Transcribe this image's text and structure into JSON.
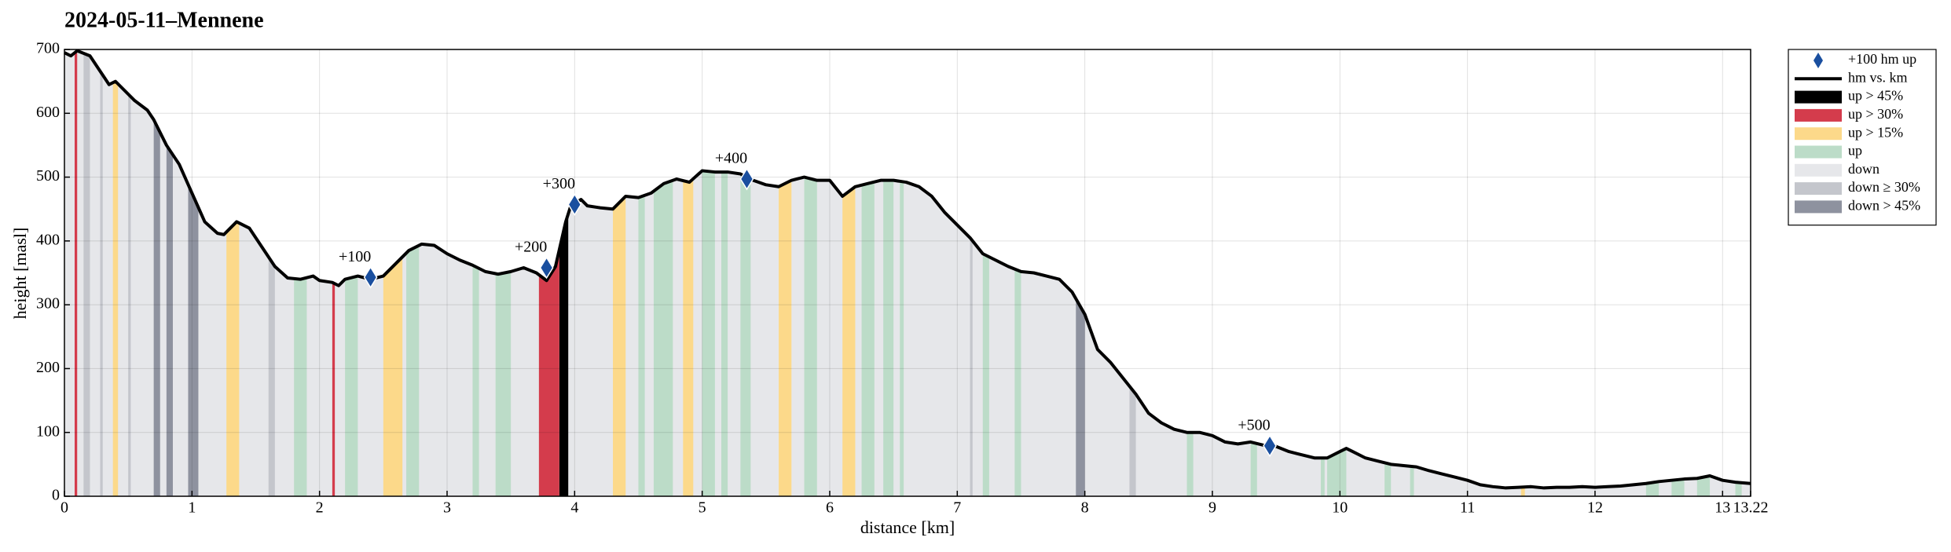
{
  "chart_data": {
    "type": "elevation-profile",
    "title": "2024-05-11–Mennene",
    "xlabel": "distance [km]",
    "ylabel": "height [masl]",
    "xlim": [
      0,
      13.22
    ],
    "ylim": [
      0,
      700
    ],
    "xticks": [
      0,
      1,
      2,
      3,
      4,
      5,
      6,
      7,
      8,
      9,
      10,
      11,
      12,
      13,
      13.22
    ],
    "yticks": [
      0,
      100,
      200,
      300,
      400,
      500,
      600,
      700
    ],
    "grid": true,
    "legend": "outside upper right",
    "series": [
      {
        "name": "+100 hm up",
        "kind": "marker",
        "color": "#1a4f9f",
        "x": [
          2.4,
          3.78,
          4.0,
          5.35,
          9.45
        ],
        "values": [
          343,
          358,
          457,
          497,
          79
        ],
        "value_labels": [
          "+100",
          "+200",
          "+300",
          "+400",
          "+500"
        ]
      },
      {
        "name": "hm vs. km",
        "kind": "line",
        "color": "#000000",
        "x": [
          0,
          0.05,
          0.1,
          0.2,
          0.3,
          0.35,
          0.4,
          0.45,
          0.55,
          0.65,
          0.7,
          0.8,
          0.9,
          1.0,
          1.1,
          1.2,
          1.25,
          1.35,
          1.45,
          1.55,
          1.65,
          1.75,
          1.85,
          1.95,
          2.0,
          2.1,
          2.15,
          2.2,
          2.3,
          2.4,
          2.5,
          2.6,
          2.7,
          2.8,
          2.9,
          3.0,
          3.1,
          3.2,
          3.3,
          3.4,
          3.5,
          3.6,
          3.7,
          3.78,
          3.85,
          3.93,
          3.97,
          4.05,
          4.1,
          4.2,
          4.3,
          4.4,
          4.5,
          4.6,
          4.7,
          4.8,
          4.9,
          5.0,
          5.1,
          5.2,
          5.3,
          5.4,
          5.5,
          5.6,
          5.7,
          5.8,
          5.9,
          6.0,
          6.1,
          6.2,
          6.3,
          6.4,
          6.5,
          6.6,
          6.7,
          6.8,
          6.9,
          7.0,
          7.1,
          7.2,
          7.3,
          7.4,
          7.5,
          7.6,
          7.7,
          7.8,
          7.9,
          8.0,
          8.1,
          8.2,
          8.3,
          8.4,
          8.5,
          8.6,
          8.7,
          8.8,
          8.9,
          9.0,
          9.1,
          9.2,
          9.3,
          9.4,
          9.5,
          9.6,
          9.7,
          9.8,
          9.9,
          10.0,
          10.05,
          10.1,
          10.2,
          10.3,
          10.4,
          10.5,
          10.6,
          10.7,
          10.8,
          10.9,
          11.0,
          11.1,
          11.2,
          11.3,
          11.4,
          11.5,
          11.6,
          11.7,
          11.8,
          11.9,
          12.0,
          12.1,
          12.2,
          12.3,
          12.4,
          12.5,
          12.6,
          12.7,
          12.8,
          12.9,
          13.0,
          13.1,
          13.22
        ],
        "values": [
          695,
          690,
          698,
          690,
          660,
          645,
          650,
          640,
          620,
          605,
          590,
          550,
          520,
          475,
          430,
          412,
          410,
          430,
          420,
          390,
          360,
          342,
          340,
          345,
          338,
          335,
          330,
          340,
          345,
          340,
          345,
          365,
          385,
          395,
          393,
          380,
          370,
          362,
          352,
          348,
          352,
          358,
          350,
          338,
          360,
          430,
          455,
          465,
          455,
          452,
          450,
          470,
          468,
          475,
          490,
          497,
          492,
          510,
          508,
          508,
          505,
          495,
          488,
          485,
          495,
          500,
          495,
          495,
          470,
          485,
          490,
          495,
          495,
          492,
          485,
          470,
          445,
          425,
          405,
          380,
          370,
          360,
          352,
          350,
          345,
          340,
          320,
          285,
          230,
          210,
          185,
          160,
          130,
          115,
          105,
          100,
          100,
          95,
          85,
          82,
          85,
          80,
          78,
          70,
          65,
          60,
          60,
          70,
          75,
          70,
          60,
          55,
          50,
          48,
          46,
          40,
          35,
          30,
          25,
          18,
          15,
          13,
          14,
          15,
          13,
          14,
          14,
          15,
          14,
          15,
          16,
          18,
          20,
          23,
          25,
          27,
          28,
          32,
          25,
          22,
          20
        ]
      },
      {
        "name": "up > 45%",
        "kind": "band",
        "color": "#000000",
        "ranges": [
          [
            3.88,
            3.95
          ]
        ]
      },
      {
        "name": "up > 30%",
        "kind": "band",
        "color": "#d43c4c",
        "ranges": [
          [
            0.08,
            0.1
          ],
          [
            2.1,
            2.12
          ],
          [
            3.72,
            3.88
          ]
        ]
      },
      {
        "name": "up > 15%",
        "kind": "band",
        "color": "#fcd98a",
        "ranges": [
          [
            0.38,
            0.42
          ],
          [
            1.27,
            1.37
          ],
          [
            2.5,
            2.65
          ],
          [
            4.3,
            4.4
          ],
          [
            4.85,
            4.93
          ],
          [
            5.6,
            5.7
          ],
          [
            6.1,
            6.2
          ],
          [
            11.42,
            11.45
          ]
        ]
      },
      {
        "name": "up",
        "kind": "band",
        "color": "#bcdcc8",
        "ranges": [
          [
            1.8,
            1.9
          ],
          [
            2.2,
            2.3
          ],
          [
            2.68,
            2.78
          ],
          [
            3.2,
            3.25
          ],
          [
            3.38,
            3.5
          ],
          [
            4.5,
            4.55
          ],
          [
            4.62,
            4.77
          ],
          [
            5.0,
            5.1
          ],
          [
            5.15,
            5.2
          ],
          [
            5.3,
            5.38
          ],
          [
            5.8,
            5.9
          ],
          [
            6.25,
            6.35
          ],
          [
            6.42,
            6.5
          ],
          [
            6.55,
            6.58
          ],
          [
            7.2,
            7.25
          ],
          [
            7.45,
            7.5
          ],
          [
            8.8,
            8.85
          ],
          [
            9.3,
            9.35
          ],
          [
            9.85,
            9.88
          ],
          [
            9.9,
            10.05
          ],
          [
            10.35,
            10.4
          ],
          [
            10.55,
            10.58
          ],
          [
            12.4,
            12.5
          ],
          [
            12.6,
            12.7
          ],
          [
            12.8,
            12.9
          ],
          [
            13.1,
            13.15
          ]
        ]
      },
      {
        "name": "down",
        "kind": "band",
        "color": "#e6e7ea",
        "ranges": [
          [
            0,
            13.22
          ]
        ]
      },
      {
        "name": "down ≥ 30%",
        "kind": "band",
        "color": "#c4c6cc",
        "ranges": [
          [
            0.15,
            0.2
          ],
          [
            0.28,
            0.3
          ],
          [
            0.5,
            0.52
          ],
          [
            1.6,
            1.65
          ],
          [
            7.1,
            7.12
          ],
          [
            8.35,
            8.4
          ]
        ]
      },
      {
        "name": "down > 45%",
        "kind": "band",
        "color": "#8e929f",
        "ranges": [
          [
            0.7,
            0.75
          ],
          [
            0.8,
            0.85
          ],
          [
            0.97,
            1.05
          ],
          [
            7.93,
            8.0
          ]
        ]
      }
    ]
  }
}
